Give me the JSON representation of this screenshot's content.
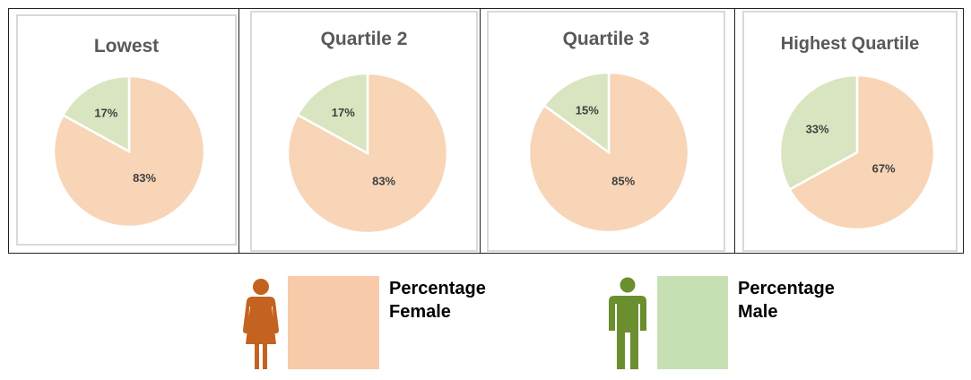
{
  "chart_data": [
    {
      "type": "pie",
      "title": "Lowest",
      "labels": [
        "Percentage Female",
        "Percentage Male"
      ],
      "values": [
        83,
        17
      ],
      "value_labels": [
        "83%",
        "17%"
      ],
      "colors": [
        "#f8d5b6",
        "#d8e5c0"
      ]
    },
    {
      "type": "pie",
      "title": "Quartile 2",
      "labels": [
        "Percentage Female",
        "Percentage Male"
      ],
      "values": [
        83,
        17
      ],
      "value_labels": [
        "83%",
        "17%"
      ],
      "colors": [
        "#f8d5b6",
        "#d8e5c0"
      ]
    },
    {
      "type": "pie",
      "title": "Quartile 3",
      "labels": [
        "Percentage Female",
        "Percentage Male"
      ],
      "values": [
        85,
        15
      ],
      "value_labels": [
        "85%",
        "15%"
      ],
      "colors": [
        "#f8d5b6",
        "#d8e5c0"
      ]
    },
    {
      "type": "pie",
      "title": "Highest Quartile",
      "labels": [
        "Percentage Female",
        "Percentage Male"
      ],
      "values": [
        67,
        33
      ],
      "value_labels": [
        "67%",
        "33%"
      ],
      "colors": [
        "#f8d5b6",
        "#d8e5c0"
      ]
    }
  ],
  "legend": {
    "female": {
      "line1": "Percentage",
      "line2": "Female",
      "swatch_color": "#f7cbaa",
      "icon": "female-person-icon",
      "icon_color": "#c4621f"
    },
    "male": {
      "line1": "Percentage",
      "line2": "Male",
      "swatch_color": "#c6e0b4",
      "icon": "male-person-icon",
      "icon_color": "#6b8e2f"
    }
  }
}
